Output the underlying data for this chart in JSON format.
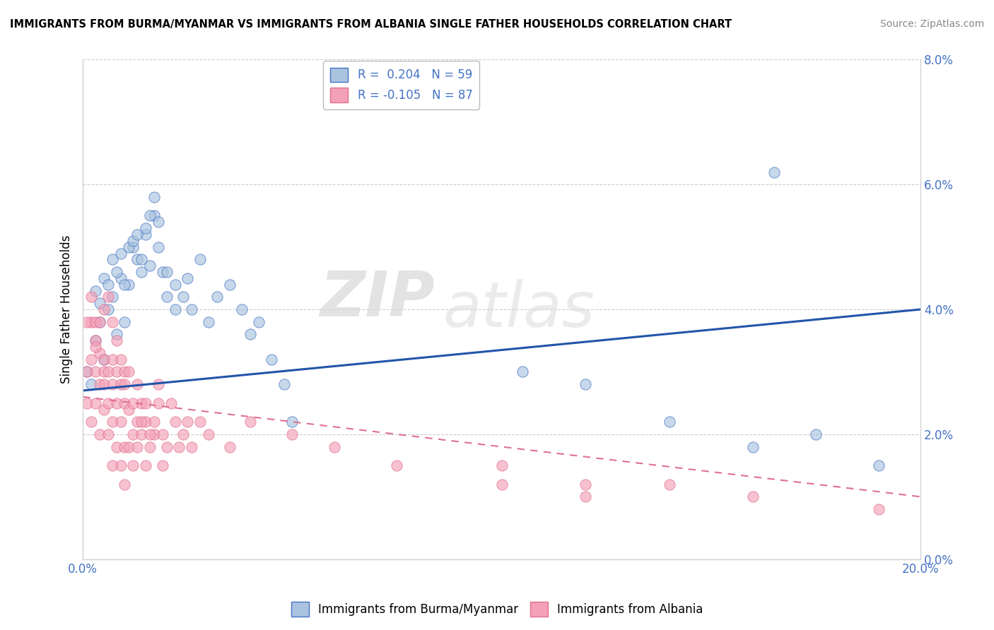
{
  "title": "IMMIGRANTS FROM BURMA/MYANMAR VS IMMIGRANTS FROM ALBANIA SINGLE FATHER HOUSEHOLDS CORRELATION CHART",
  "source": "Source: ZipAtlas.com",
  "ylabel": "Single Father Households",
  "legend_label1": "Immigrants from Burma/Myanmar",
  "legend_label2": "Immigrants from Albania",
  "R1": 0.204,
  "N1": 59,
  "R2": -0.105,
  "N2": 87,
  "xlim": [
    0.0,
    0.2
  ],
  "ylim": [
    0.0,
    0.08
  ],
  "xticks": [
    0.0,
    0.2
  ],
  "yticks": [
    0.0,
    0.02,
    0.04,
    0.06,
    0.08
  ],
  "color1_fill": "#aac4e0",
  "color1_edge": "#4472c4",
  "color2_fill": "#f4a0b8",
  "color2_edge": "#e07090",
  "color1_line": "#2255aa",
  "color2_line": "#e888a8",
  "background": "#ffffff",
  "watermark_zip": "ZIP",
  "watermark_atlas": "atlas",
  "blue_scatter_x": [
    0.001,
    0.002,
    0.003,
    0.004,
    0.005,
    0.006,
    0.007,
    0.008,
    0.009,
    0.01,
    0.011,
    0.012,
    0.013,
    0.014,
    0.015,
    0.016,
    0.017,
    0.018,
    0.019,
    0.02,
    0.022,
    0.025,
    0.028,
    0.03,
    0.032,
    0.035,
    0.038,
    0.04,
    0.042,
    0.045,
    0.048,
    0.05,
    0.003,
    0.004,
    0.005,
    0.006,
    0.007,
    0.008,
    0.009,
    0.01,
    0.011,
    0.012,
    0.013,
    0.014,
    0.015,
    0.016,
    0.017,
    0.018,
    0.02,
    0.022,
    0.024,
    0.026,
    0.105,
    0.12,
    0.14,
    0.16,
    0.165,
    0.175,
    0.19
  ],
  "blue_scatter_y": [
    0.03,
    0.028,
    0.035,
    0.038,
    0.032,
    0.04,
    0.042,
    0.036,
    0.045,
    0.038,
    0.044,
    0.05,
    0.048,
    0.046,
    0.052,
    0.047,
    0.055,
    0.05,
    0.046,
    0.042,
    0.04,
    0.045,
    0.048,
    0.038,
    0.042,
    0.044,
    0.04,
    0.036,
    0.038,
    0.032,
    0.028,
    0.022,
    0.043,
    0.041,
    0.045,
    0.044,
    0.048,
    0.046,
    0.049,
    0.044,
    0.05,
    0.051,
    0.052,
    0.048,
    0.053,
    0.055,
    0.058,
    0.054,
    0.046,
    0.044,
    0.042,
    0.04,
    0.03,
    0.028,
    0.022,
    0.018,
    0.062,
    0.02,
    0.015
  ],
  "pink_scatter_x": [
    0.001,
    0.001,
    0.002,
    0.002,
    0.002,
    0.003,
    0.003,
    0.003,
    0.004,
    0.004,
    0.004,
    0.005,
    0.005,
    0.005,
    0.005,
    0.006,
    0.006,
    0.006,
    0.007,
    0.007,
    0.007,
    0.007,
    0.008,
    0.008,
    0.008,
    0.009,
    0.009,
    0.009,
    0.01,
    0.01,
    0.01,
    0.01,
    0.011,
    0.011,
    0.012,
    0.012,
    0.013,
    0.013,
    0.014,
    0.014,
    0.015,
    0.015,
    0.016,
    0.017,
    0.018,
    0.019,
    0.001,
    0.002,
    0.003,
    0.003,
    0.004,
    0.005,
    0.006,
    0.007,
    0.008,
    0.009,
    0.01,
    0.011,
    0.012,
    0.013,
    0.014,
    0.015,
    0.016,
    0.017,
    0.018,
    0.019,
    0.02,
    0.021,
    0.022,
    0.023,
    0.024,
    0.025,
    0.026,
    0.028,
    0.03,
    0.035,
    0.04,
    0.05,
    0.06,
    0.075,
    0.1,
    0.12,
    0.14,
    0.16,
    0.19,
    0.1,
    0.12
  ],
  "pink_scatter_y": [
    0.03,
    0.025,
    0.032,
    0.022,
    0.038,
    0.03,
    0.025,
    0.035,
    0.028,
    0.02,
    0.033,
    0.03,
    0.024,
    0.032,
    0.028,
    0.02,
    0.025,
    0.03,
    0.022,
    0.015,
    0.028,
    0.032,
    0.018,
    0.025,
    0.03,
    0.015,
    0.022,
    0.028,
    0.018,
    0.025,
    0.012,
    0.03,
    0.018,
    0.024,
    0.02,
    0.015,
    0.022,
    0.018,
    0.025,
    0.02,
    0.015,
    0.022,
    0.018,
    0.02,
    0.025,
    0.015,
    0.038,
    0.042,
    0.038,
    0.034,
    0.038,
    0.04,
    0.042,
    0.038,
    0.035,
    0.032,
    0.028,
    0.03,
    0.025,
    0.028,
    0.022,
    0.025,
    0.02,
    0.022,
    0.028,
    0.02,
    0.018,
    0.025,
    0.022,
    0.018,
    0.02,
    0.022,
    0.018,
    0.022,
    0.02,
    0.018,
    0.022,
    0.02,
    0.018,
    0.015,
    0.012,
    0.01,
    0.012,
    0.01,
    0.008,
    0.015,
    0.012
  ]
}
